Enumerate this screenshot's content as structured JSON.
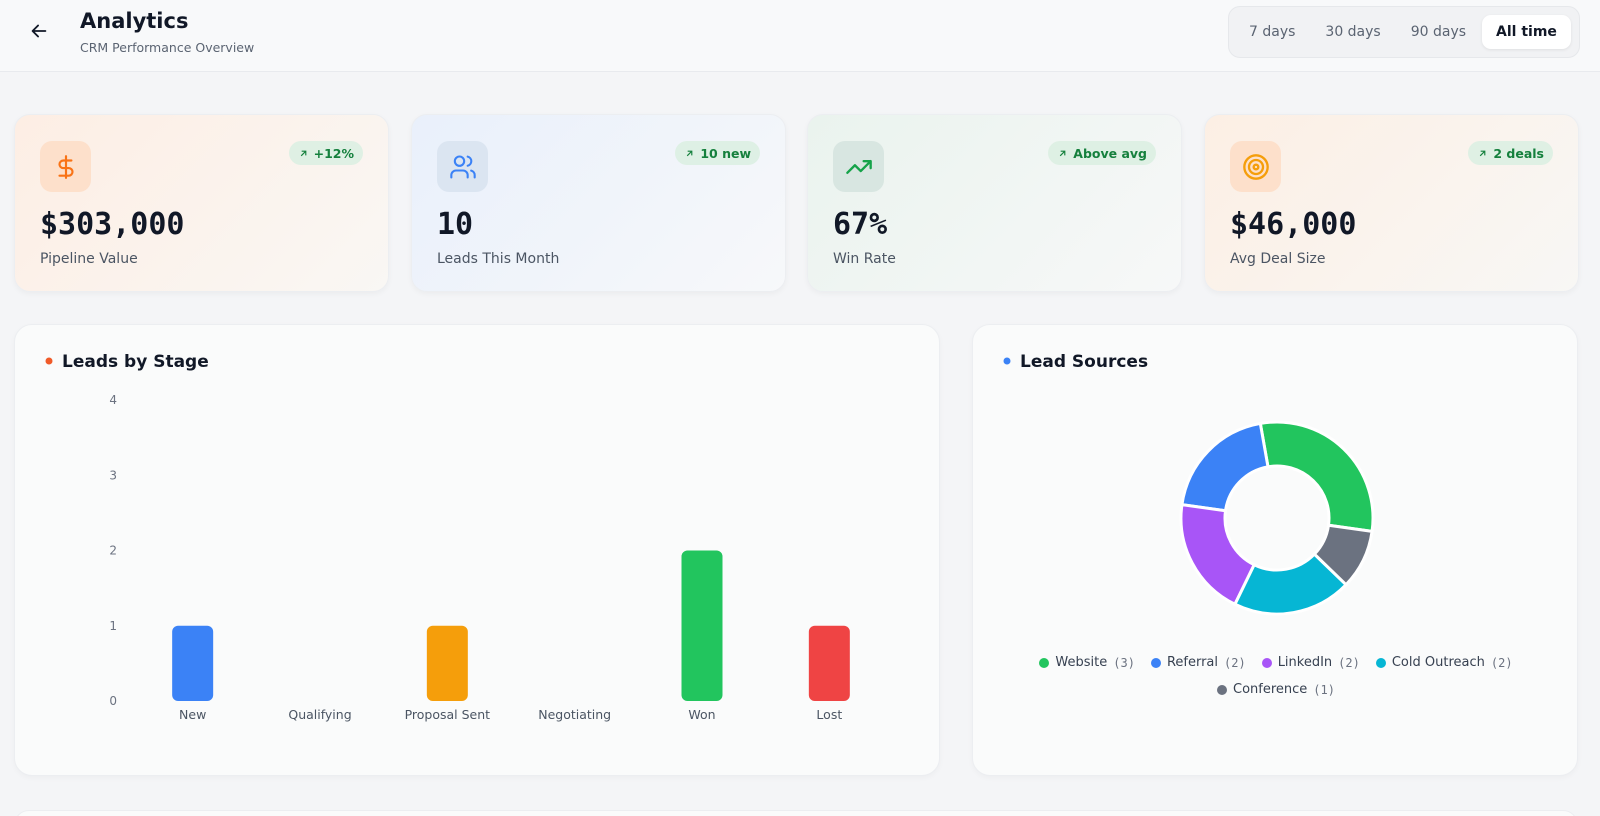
{
  "header": {
    "title": "Analytics",
    "subtitle": "CRM Performance Overview"
  },
  "range_tabs": {
    "options": [
      "7 days",
      "30 days",
      "90 days",
      "All time"
    ],
    "active": 3
  },
  "kpis": [
    {
      "badge": "+12%",
      "value": "$303,000",
      "label": "Pipeline Value"
    },
    {
      "badge": "10 new",
      "value": "10",
      "label": "Leads This Month"
    },
    {
      "badge": "Above avg",
      "value": "67%",
      "label": "Win Rate"
    },
    {
      "badge": "2 deals",
      "value": "$46,000",
      "label": "Avg Deal Size"
    }
  ],
  "chart_data": [
    {
      "type": "bar",
      "title": "Leads by Stage",
      "title_dot_color": "#f05a28",
      "categories": [
        "New",
        "Qualifying",
        "Proposal Sent",
        "Negotiating",
        "Won",
        "Lost"
      ],
      "values": [
        1,
        0,
        1,
        0,
        2,
        1
      ],
      "colors": [
        "#3b82f6",
        null,
        "#f59e0b",
        null,
        "#22c55e",
        "#ef4444"
      ],
      "ylim": [
        0,
        4
      ],
      "yticks": [
        0,
        1,
        2,
        3,
        4
      ],
      "grid": false
    },
    {
      "type": "donut",
      "title": "Lead Sources",
      "title_dot_color": "#3b82f6",
      "categories": [
        "Website",
        "Referral",
        "LinkedIn",
        "Cold Outreach",
        "Conference"
      ],
      "values": [
        3,
        2,
        2,
        2,
        1
      ],
      "value_labels": [
        "(3)",
        "(2)",
        "(2)",
        "(2)",
        "(1)"
      ],
      "colors": [
        "#22c55e",
        "#3b82f6",
        "#a855f7",
        "#06b6d4",
        "#6b7280"
      ]
    }
  ]
}
